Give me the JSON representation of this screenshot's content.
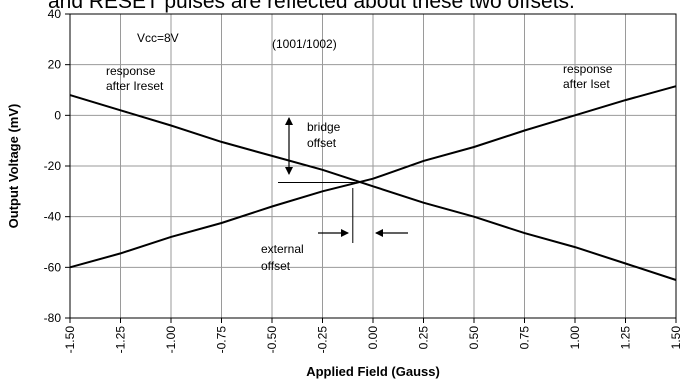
{
  "caption": "and RESET pulses are reflected about these two offsets.",
  "chart_data": {
    "type": "line",
    "title": "",
    "xlabel": "Applied Field (Gauss)",
    "ylabel": "Output Voltage (mV)",
    "xlim": [
      -1.5,
      1.5
    ],
    "ylim": [
      -80,
      40
    ],
    "x_ticks": [
      "-1.50",
      "-1.25",
      "-1.00",
      "-0.75",
      "-0.50",
      "-0.25",
      "0.00",
      "0.25",
      "0.50",
      "0.75",
      "1.00",
      "1.25",
      "1.50"
    ],
    "y_ticks": [
      "-80",
      "-60",
      "-40",
      "-20",
      "0",
      "20",
      "40"
    ],
    "grid": true,
    "series": [
      {
        "name": "response after Ireset",
        "x": [
          -1.5,
          -1.25,
          -1.0,
          -0.75,
          -0.5,
          -0.25,
          0.0,
          0.25,
          0.5,
          0.75,
          1.0,
          1.25,
          1.5
        ],
        "values": [
          8,
          2,
          -4,
          -10.5,
          -16,
          -21.5,
          -28,
          -34.5,
          -40,
          -46.5,
          -52,
          -58.5,
          -65
        ]
      },
      {
        "name": "response after Iset",
        "x": [
          -1.5,
          -1.25,
          -1.0,
          -0.75,
          -0.5,
          -0.25,
          0.0,
          0.25,
          0.5,
          0.75,
          1.0,
          1.25,
          1.5
        ],
        "values": [
          -60,
          -54.5,
          -48,
          -42.5,
          -36,
          -30,
          -25,
          -18,
          -12.5,
          -6,
          0,
          6,
          11.5
        ]
      }
    ],
    "annotations": {
      "vcc": "Vcc=8V",
      "part": "(1001/1002)",
      "reset_label": [
        "response",
        "after Ireset"
      ],
      "set_label": [
        "response",
        "after Iset"
      ],
      "bridge_offset": [
        "bridge",
        "offset"
      ],
      "external_offset": [
        "external",
        "offset"
      ]
    }
  }
}
